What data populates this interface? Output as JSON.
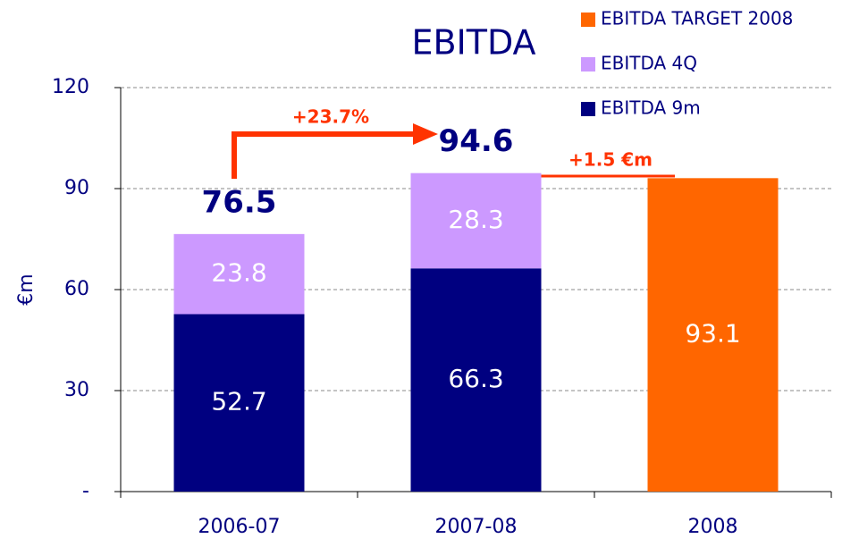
{
  "chart_data": {
    "type": "stacked_bar",
    "title": "EBITDA",
    "y_label": "€m",
    "categories": [
      "2006-07",
      "2007-08",
      "2008"
    ],
    "series": [
      {
        "name": "EBITDA 9m",
        "color": "#000080",
        "values": [
          52.7,
          66.3,
          null
        ]
      },
      {
        "name": "EBITDA 4Q",
        "color": "#cc99ff",
        "values": [
          23.8,
          28.3,
          null
        ]
      },
      {
        "name": "EBITDA TARGET 2008",
        "color": "#ff6600",
        "values": [
          null,
          null,
          93.1
        ]
      }
    ],
    "totals": [
      76.5,
      94.6,
      null
    ],
    "annotations": [
      "+23.7%",
      "+1.5 €m"
    ],
    "ylim": [
      0,
      120
    ],
    "yticks": [
      {
        "value": 0,
        "label": "-"
      },
      30,
      60,
      90,
      120
    ],
    "grid": true
  }
}
